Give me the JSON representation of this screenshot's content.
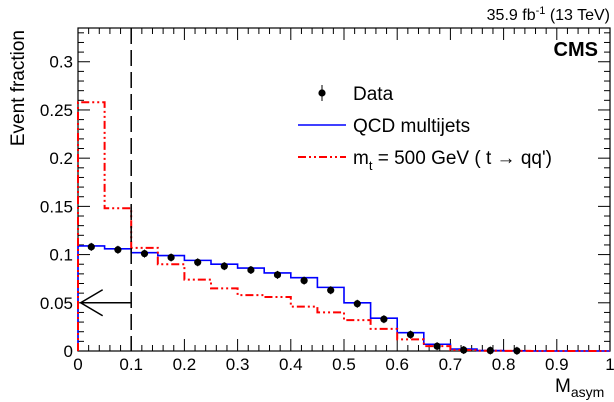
{
  "chart_data": {
    "type": "line",
    "experiment_label": "CMS",
    "luminosity_label": "35.9 fb",
    "luminosity_exponent": "-1",
    "energy_label": "(13 TeV)",
    "xlabel": "M",
    "xlabel_subscript": "asym",
    "ylabel": "Event fraction",
    "xlim": [
      0,
      1
    ],
    "ylim": [
      0,
      0.335
    ],
    "x_ticks": [
      "0",
      "0.1",
      "0.2",
      "0.3",
      "0.4",
      "0.5",
      "0.6",
      "0.7",
      "0.8",
      "0.9",
      "1"
    ],
    "y_ticks": [
      "0",
      "0.05",
      "0.1",
      "0.15",
      "0.2",
      "0.25",
      "0.3"
    ],
    "grid": false,
    "legend_position": "top-right",
    "bin_edges": [
      0,
      0.05,
      0.1,
      0.15,
      0.2,
      0.25,
      0.3,
      0.35,
      0.4,
      0.45,
      0.5,
      0.55,
      0.6,
      0.65,
      0.7,
      0.75,
      0.8,
      0.85,
      0.9,
      0.95,
      1.0
    ],
    "series": [
      {
        "name": "Data",
        "style": "points",
        "color": "#000000",
        "x": [
          0.025,
          0.075,
          0.125,
          0.175,
          0.225,
          0.275,
          0.325,
          0.375,
          0.425,
          0.475,
          0.525,
          0.575,
          0.625,
          0.675,
          0.725,
          0.775,
          0.825
        ],
        "values": [
          0.108,
          0.105,
          0.101,
          0.097,
          0.092,
          0.088,
          0.084,
          0.079,
          0.073,
          0.063,
          0.049,
          0.033,
          0.017,
          0.005,
          0.001,
          0.0005,
          0.0002
        ]
      },
      {
        "name": "QCD multijets",
        "style": "step",
        "color": "#0000ff",
        "values": [
          0.109,
          0.106,
          0.102,
          0.099,
          0.094,
          0.09,
          0.086,
          0.081,
          0.076,
          0.066,
          0.05,
          0.034,
          0.019,
          0.007,
          0.002,
          0.0005,
          0.0002,
          0.0,
          0.0,
          0.0
        ]
      },
      {
        "name": "= 500 GeV (",
        "name_prefix": "m",
        "name_subscript": "t",
        "name_decay": "t → qq')",
        "style": "step-dashdot",
        "color": "#ff0000",
        "values": [
          0.258,
          0.148,
          0.107,
          0.09,
          0.074,
          0.065,
          0.058,
          0.056,
          0.046,
          0.04,
          0.032,
          0.023,
          0.012,
          0.005,
          0.001,
          0.0003,
          0.0001,
          0.0,
          0.0,
          0.0
        ]
      }
    ],
    "annotations": {
      "cut_line_x": 0.1,
      "arrow_y": 0.05,
      "arrow_from_x": 0.1,
      "arrow_to_x": 0.005
    }
  }
}
